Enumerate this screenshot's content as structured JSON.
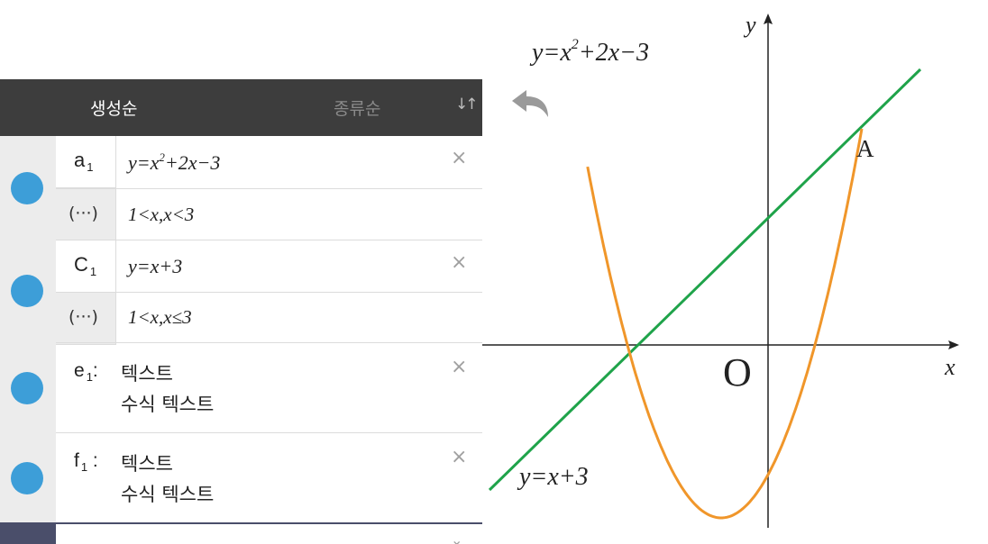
{
  "panel": {
    "tabs": {
      "active": "생성순",
      "inactive": "종류순",
      "sort_icon": "↓↑"
    },
    "items": [
      {
        "label": "a",
        "label_sub": "1",
        "formula_pre": "y=x",
        "formula_sup": "2",
        "formula_post": "+2x−3",
        "condition_label": "(···)",
        "condition": "1<x,x<3"
      },
      {
        "label": "C",
        "label_sub": "1",
        "formula": "y=x+3",
        "condition_label": "(···)",
        "condition": "1<x,x≤3"
      }
    ],
    "texts": [
      {
        "name": "e",
        "sub": "1",
        "suffix": ":",
        "line1": "텍스트",
        "line2": "수식 텍스트"
      },
      {
        "name": "f",
        "sub": "1",
        "suffix": " :",
        "line1": "텍스트",
        "line2": "수식 텍스트"
      }
    ],
    "close_glyph": "×",
    "expand_glyph": "⌄"
  },
  "graph": {
    "y_axis_label": "y",
    "x_axis_label": "x",
    "origin_label": "O",
    "point_label": "A",
    "parabola_label_pre": "y=x",
    "parabola_label_sup": "2",
    "parabola_label_post": "+2x−3",
    "line_label": "y=x+3",
    "colors": {
      "parabola": "#f0962a",
      "line": "#1fa34a",
      "axis": "#222222",
      "dot": "#3d9ed8",
      "header": "#3d3d3d"
    }
  }
}
